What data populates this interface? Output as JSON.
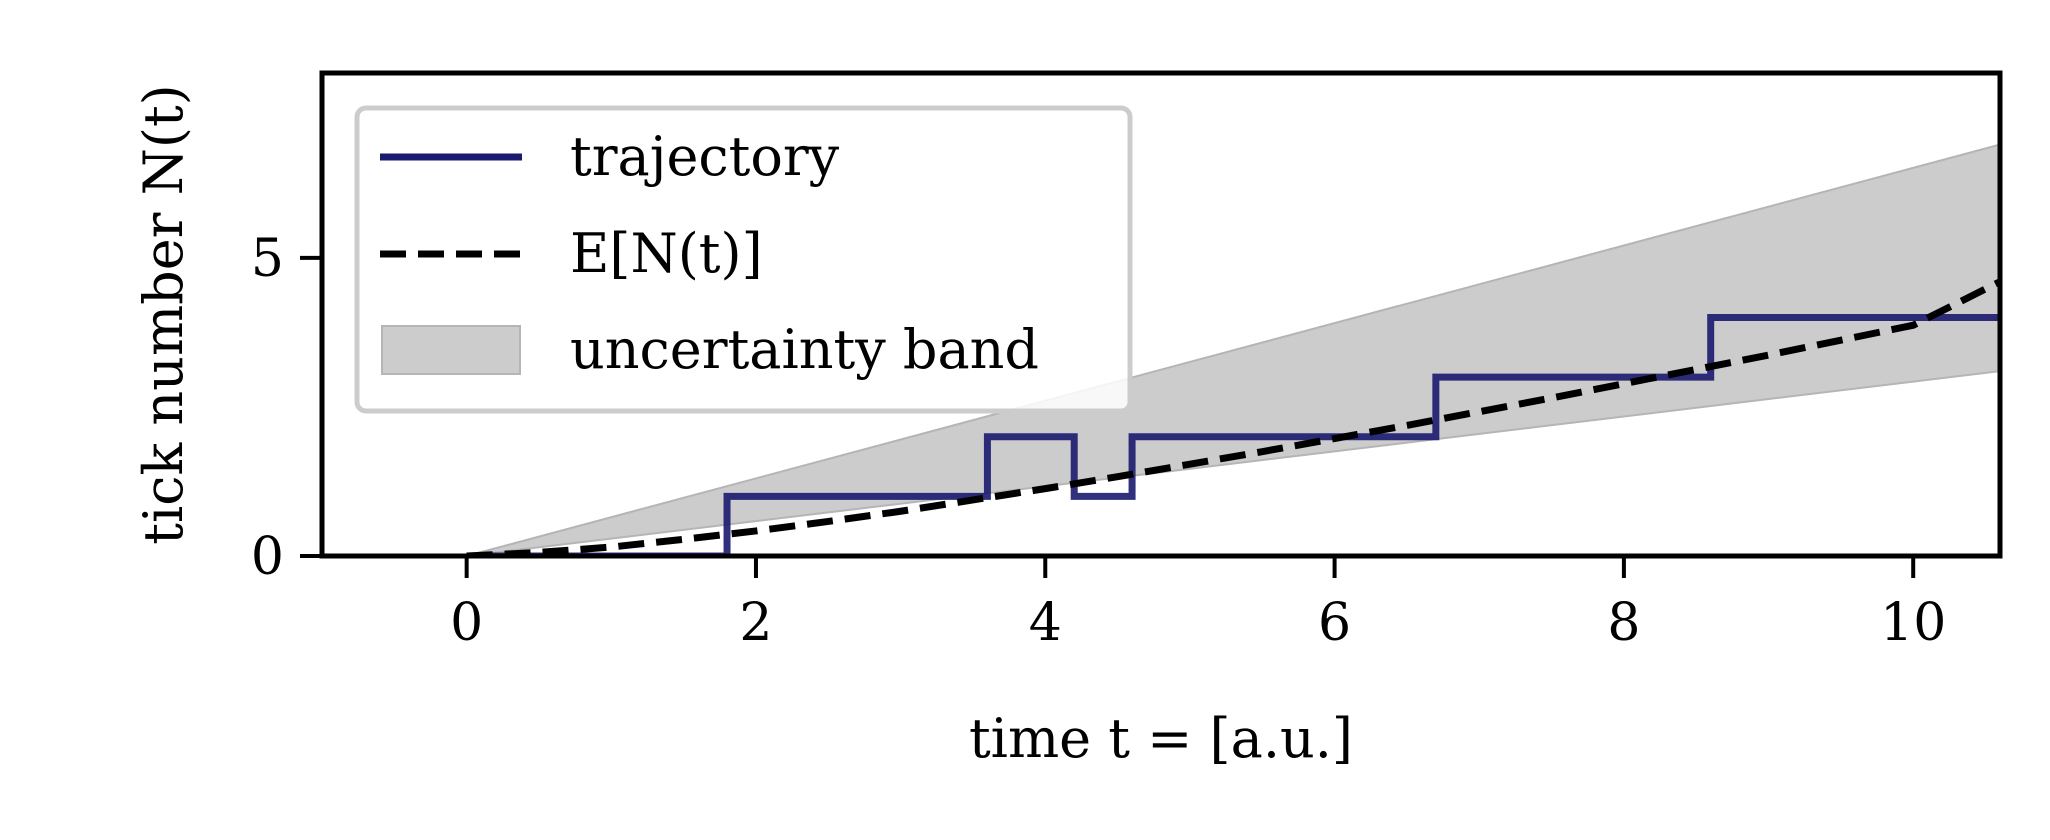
{
  "chart_data": {
    "type": "line",
    "xlabel": "time t = [a.u.]",
    "ylabel": "tick number N(t)",
    "xlim": [
      -1.0,
      10.6
    ],
    "ylim": [
      0,
      8.1
    ],
    "xticks": [
      0,
      2,
      4,
      6,
      8,
      10
    ],
    "xtick_labels": [
      "0",
      "2",
      "4",
      "6",
      "8",
      "10"
    ],
    "yticks": [
      0,
      5
    ],
    "ytick_labels": [
      "0",
      "5"
    ],
    "legend_position": "top-left",
    "series": [
      {
        "name": "trajectory",
        "kind": "step",
        "color": "#1a1a6e",
        "x": [
          0,
          1.8,
          1.8,
          3.6,
          3.6,
          4.2,
          4.2,
          4.6,
          4.6,
          6.7,
          6.7,
          8.6,
          8.6,
          10.6
        ],
        "y": [
          0,
          0,
          1,
          1,
          2,
          2,
          1,
          1,
          2,
          2,
          3,
          3,
          4,
          4
        ]
      },
      {
        "name": "E[N(t)]",
        "kind": "dashed-line",
        "color": "#000000",
        "x": [
          0,
          0.5,
          1,
          1.5,
          2,
          2.5,
          3,
          3.5,
          4,
          4.5,
          5,
          5.5,
          6,
          6.5,
          7,
          7.5,
          8,
          8.5,
          9,
          9.5,
          10,
          10.6
        ],
        "y": [
          0,
          0.06,
          0.15,
          0.28,
          0.42,
          0.58,
          0.75,
          0.94,
          1.13,
          1.33,
          1.54,
          1.75,
          1.97,
          2.19,
          2.42,
          2.65,
          2.89,
          3.13,
          3.37,
          3.62,
          3.87,
          4.6
        ]
      },
      {
        "name": "uncertainty band",
        "kind": "band",
        "color": "#cccccc",
        "x": [
          0,
          10.6
        ],
        "lower": [
          0,
          3.1
        ],
        "upper": [
          0,
          6.9
        ]
      }
    ]
  }
}
